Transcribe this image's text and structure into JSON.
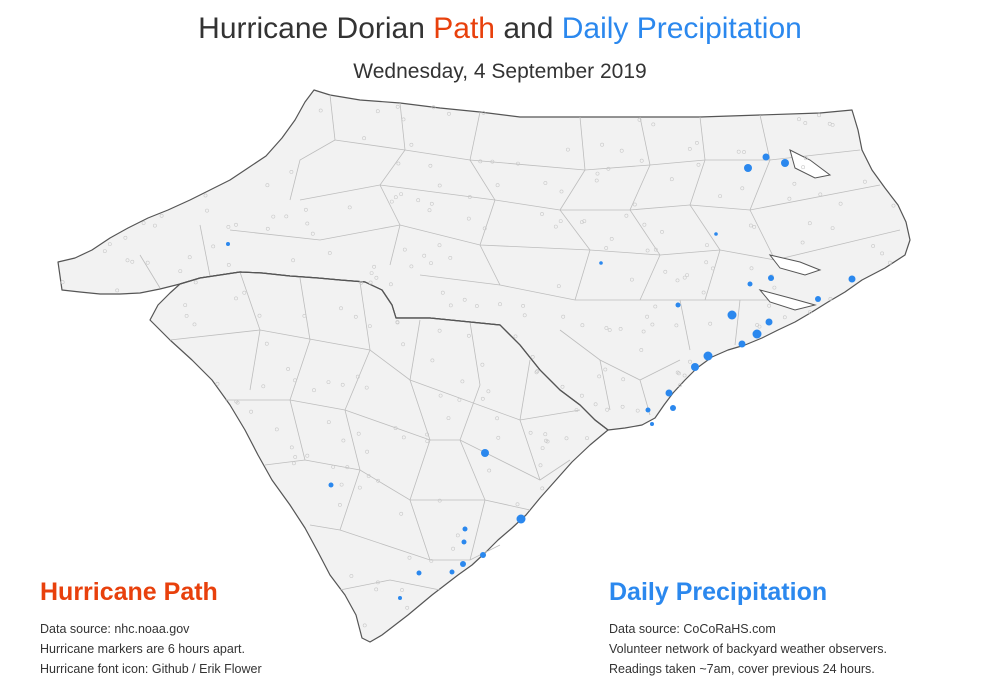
{
  "title": {
    "part1": "Hurricane Dorian ",
    "part2": "Path",
    "part3": " and ",
    "part4": "Daily Precipitation"
  },
  "subtitle": "Wednesday, 4 September 2019",
  "colors": {
    "path_accent": "#e8400c",
    "precip_accent": "#2b88ee",
    "land_fill": "#f2f2f2",
    "county_line": "#bdbdbd",
    "state_line": "#555555",
    "station_empty": "#c8c8c8"
  },
  "legend_path": {
    "heading": "Hurricane Path",
    "lines": [
      "Data source: nhc.noaa.gov",
      "Hurricane markers are 6 hours apart.",
      "Hurricane font icon: Github / Erik Flower"
    ]
  },
  "legend_precip": {
    "heading": "Daily Precipitation",
    "lines": [
      "Data source: CoCoRaHS.com",
      "Volunteer network of backyard weather observers.",
      "Readings taken ~7am, cover previous 24 hours."
    ]
  }
}
